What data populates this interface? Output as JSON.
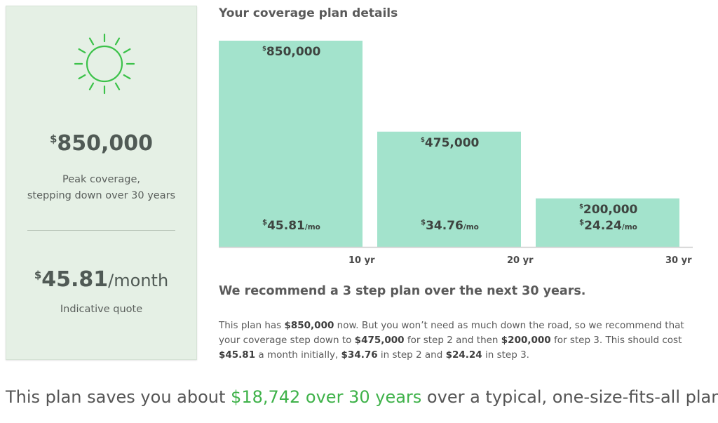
{
  "summary": {
    "currency_symbol": "$",
    "peak_amount": "850,000",
    "peak_label_line1": "Peak coverage,",
    "peak_label_line2": "stepping down over 30 years",
    "quote_amount": "45.81",
    "quote_unit": "/month",
    "quote_label": "Indicative quote"
  },
  "colors": {
    "bar": "#a3e3cc",
    "axis": "#cfcfcf",
    "sun": "#3cc24a",
    "highlight": "#3fb24a"
  },
  "chart_data": {
    "type": "bar",
    "title": "Your coverage plan details",
    "categories": [
      "10 yr",
      "20 yr",
      "30 yr"
    ],
    "values": [
      850000,
      475000,
      200000
    ],
    "value_labels": [
      "850,000",
      "475,000",
      "200,000"
    ],
    "premium_labels": [
      "45.81",
      "34.76",
      "24.24"
    ],
    "premium_unit": "/mo",
    "ylim": [
      0,
      850000
    ]
  },
  "recommendation": {
    "title": "We recommend a 3 step plan over the next 30 years.",
    "p1": "This plan has ",
    "b1": "$850,000",
    "p2": " now. But you won’t need as much down the road, so we recommend that your coverage step down to ",
    "b2": "$475,000",
    "p3": " for step 2 and then ",
    "b3": "$200,000",
    "p4": " for step 3. This should cost ",
    "b4": "$45.81",
    "p5": " a month initially, ",
    "b5": "$34.76",
    "p6": " in step 2 and ",
    "b6": "$24.24",
    "p7": " in step 3."
  },
  "savings": {
    "pre": "This plan saves you about ",
    "highlight": "$18,742 over 30 years",
    "post": " over a typical, one-size-fits-all plan."
  }
}
